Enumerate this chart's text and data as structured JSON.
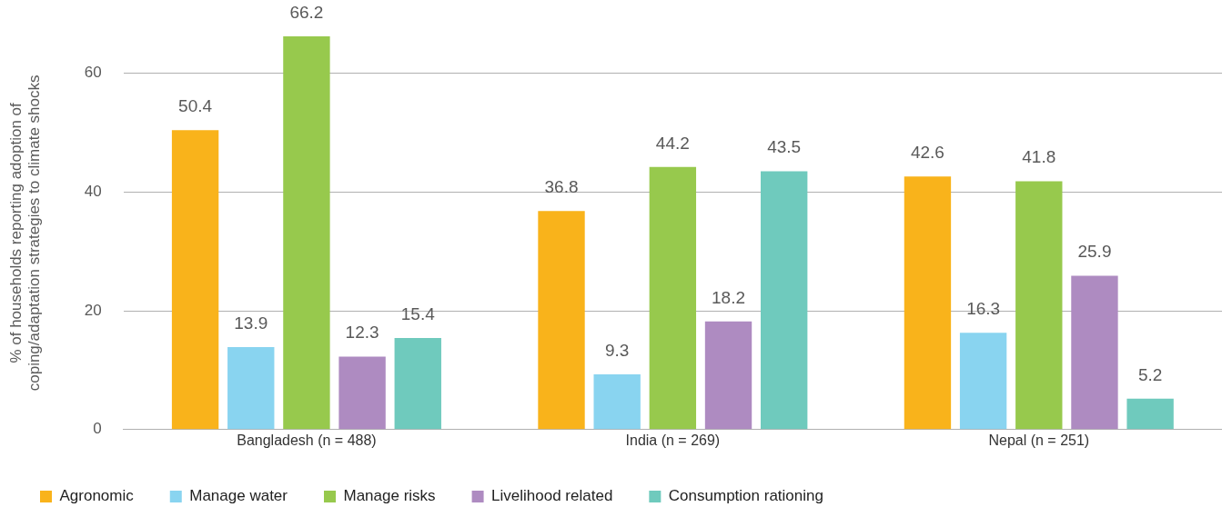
{
  "chart_data": {
    "type": "bar",
    "ylabel": "% of households reporting adoption of\ncoping/adaptation strategies to climate shocks",
    "categories": [
      "Bangladesh (n = 488)",
      "India (n = 269)",
      "Nepal (n = 251)"
    ],
    "series": [
      {
        "name": "Agronomic",
        "color": "#f9b31b",
        "values": [
          50.4,
          36.8,
          42.6
        ]
      },
      {
        "name": "Manage water",
        "color": "#89d4f0",
        "values": [
          13.9,
          9.3,
          16.3
        ]
      },
      {
        "name": "Manage risks",
        "color": "#97c94d",
        "values": [
          66.2,
          44.2,
          41.8
        ]
      },
      {
        "name": "Livelihood related",
        "color": "#ae8bc1",
        "values": [
          12.3,
          18.2,
          25.9
        ]
      },
      {
        "name": "Consumption rationing",
        "color": "#6fcabd",
        "values": [
          15.4,
          43.5,
          5.2
        ]
      }
    ],
    "ylim": [
      0,
      66.2
    ],
    "yticks": [
      0,
      20,
      40,
      60
    ],
    "grid": "y",
    "legend": "bottom",
    "data_labels": true
  }
}
